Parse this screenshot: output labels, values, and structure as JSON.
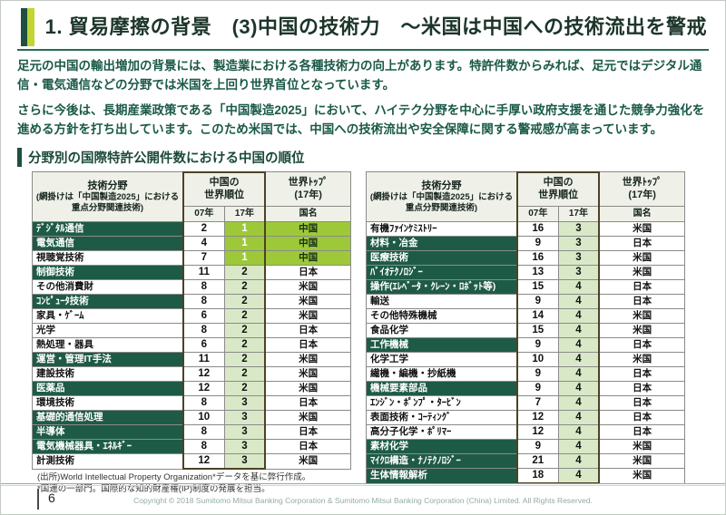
{
  "page": {
    "title": "1. 貿易摩擦の背景　(3)中国の技術力　～米国は中国への技術流出を警戒",
    "page_number": "6",
    "copyright": "Copyright © 2018 Sumitomo Mitsui Banking Corporation & Sumitomo Mitsui Banking Corporation (China) Limited. All Rights Reserved."
  },
  "body": {
    "paragraph1": "足元の中国の輸出増加の背景には、製造業における各種技術力の向上があります。特許件数からみれば、足元ではデジタル通信・電気通信などの分野では米国を上回り世界首位となっています。",
    "paragraph2": "さらに今後は、長期産業政策である「中国製造2025」において、ハイテク分野を中心に手厚い政府支援を通じた競争力強化を進める方針を打ち出しています。このため米国では、中国への技術流出や安全保障に関する警戒感が高まっています。",
    "section_title": "分野別の国際特許公開件数における中国の順位"
  },
  "table_header": {
    "field_title": "技術分野",
    "field_note": "(網掛けは「中国製造2025」における重点分野関連技術)",
    "china_rank_line1": "中国の",
    "china_rank_line2": "世界順位",
    "y07": "07年",
    "y17": "17年",
    "world_top_line1": "世界ﾄｯﾌﾟ",
    "world_top_line2": "(17年)",
    "country": "国名"
  },
  "tables": {
    "left": {
      "rows": [
        {
          "field": "ﾃﾞｼﾞﾀﾙ通信",
          "highlight": true,
          "rank_2007": "2",
          "rank_2017": "1",
          "world_top": "中国"
        },
        {
          "field": "電気通信",
          "highlight": true,
          "rank_2007": "4",
          "rank_2017": "1",
          "world_top": "中国"
        },
        {
          "field": "視聴覚技術",
          "highlight": false,
          "rank_2007": "7",
          "rank_2017": "1",
          "world_top": "中国"
        },
        {
          "field": "制御技術",
          "highlight": true,
          "rank_2007": "11",
          "rank_2017": "2",
          "world_top": "日本"
        },
        {
          "field": "その他消費財",
          "highlight": false,
          "rank_2007": "8",
          "rank_2017": "2",
          "world_top": "米国"
        },
        {
          "field": "ｺﾝﾋﾟｭｰﾀ技術",
          "highlight": true,
          "rank_2007": "8",
          "rank_2017": "2",
          "world_top": "米国"
        },
        {
          "field": "家具・ｹﾞｰﾑ",
          "highlight": false,
          "rank_2007": "6",
          "rank_2017": "2",
          "world_top": "米国"
        },
        {
          "field": "光学",
          "highlight": false,
          "rank_2007": "8",
          "rank_2017": "2",
          "world_top": "日本"
        },
        {
          "field": "熱処理・器具",
          "highlight": false,
          "rank_2007": "6",
          "rank_2017": "2",
          "world_top": "日本"
        },
        {
          "field": "運営・管理IT手法",
          "highlight": true,
          "rank_2007": "11",
          "rank_2017": "2",
          "world_top": "米国"
        },
        {
          "field": "建設技術",
          "highlight": false,
          "rank_2007": "12",
          "rank_2017": "2",
          "world_top": "米国"
        },
        {
          "field": "医薬品",
          "highlight": true,
          "rank_2007": "12",
          "rank_2017": "2",
          "world_top": "米国"
        },
        {
          "field": "環境技術",
          "highlight": false,
          "rank_2007": "8",
          "rank_2017": "3",
          "world_top": "日本"
        },
        {
          "field": "基礎的通信処理",
          "highlight": true,
          "rank_2007": "10",
          "rank_2017": "3",
          "world_top": "米国"
        },
        {
          "field": "半導体",
          "highlight": true,
          "rank_2007": "8",
          "rank_2017": "3",
          "world_top": "日本"
        },
        {
          "field": "電気機械器具・ｴﾈﾙｷﾞｰ",
          "highlight": true,
          "rank_2007": "8",
          "rank_2017": "3",
          "world_top": "日本"
        },
        {
          "field": "計測技術",
          "highlight": false,
          "rank_2007": "12",
          "rank_2017": "3",
          "world_top": "米国"
        }
      ]
    },
    "right": {
      "rows": [
        {
          "field": "有機ﾌｧｲﾝｹﾐｽﾄﾘｰ",
          "highlight": false,
          "rank_2007": "16",
          "rank_2017": "3",
          "world_top": "米国"
        },
        {
          "field": "材料・冶金",
          "highlight": true,
          "rank_2007": "9",
          "rank_2017": "3",
          "world_top": "日本"
        },
        {
          "field": "医療技術",
          "highlight": true,
          "rank_2007": "16",
          "rank_2017": "3",
          "world_top": "米国"
        },
        {
          "field": "ﾊﾞｲｵﾃｸﾉﾛｼﾞｰ",
          "highlight": true,
          "rank_2007": "13",
          "rank_2017": "3",
          "world_top": "米国"
        },
        {
          "field": "操作(ｴﾚﾍﾞｰﾀ・ｸﾚｰﾝ・ﾛﾎﾞｯﾄ等)",
          "highlight": true,
          "rank_2007": "15",
          "rank_2017": "4",
          "world_top": "日本"
        },
        {
          "field": "輸送",
          "highlight": false,
          "rank_2007": "9",
          "rank_2017": "4",
          "world_top": "日本"
        },
        {
          "field": "その他特殊機械",
          "highlight": false,
          "rank_2007": "14",
          "rank_2017": "4",
          "world_top": "米国"
        },
        {
          "field": "食品化学",
          "highlight": false,
          "rank_2007": "15",
          "rank_2017": "4",
          "world_top": "米国"
        },
        {
          "field": "工作機械",
          "highlight": true,
          "rank_2007": "9",
          "rank_2017": "4",
          "world_top": "日本"
        },
        {
          "field": "化学工学",
          "highlight": false,
          "rank_2007": "10",
          "rank_2017": "4",
          "world_top": "米国"
        },
        {
          "field": "繊機・編機・抄紙機",
          "highlight": false,
          "rank_2007": "9",
          "rank_2017": "4",
          "world_top": "日本"
        },
        {
          "field": "機械要素部品",
          "highlight": true,
          "rank_2007": "9",
          "rank_2017": "4",
          "world_top": "日本"
        },
        {
          "field": "ｴﾝｼﾞﾝ・ﾎﾟﾝﾌﾟ・ﾀｰﾋﾞﾝ",
          "highlight": false,
          "rank_2007": "7",
          "rank_2017": "4",
          "world_top": "日本"
        },
        {
          "field": "表面技術・ｺｰﾃｨﾝｸﾞ",
          "highlight": false,
          "rank_2007": "12",
          "rank_2017": "4",
          "world_top": "日本"
        },
        {
          "field": "高分子化学・ﾎﾟﾘﾏｰ",
          "highlight": false,
          "rank_2007": "12",
          "rank_2017": "4",
          "world_top": "日本"
        },
        {
          "field": "素材化学",
          "highlight": true,
          "rank_2007": "9",
          "rank_2017": "4",
          "world_top": "米国"
        },
        {
          "field": "ﾏｲｸﾛ構造・ﾅﾉﾃｸﾉﾛｼﾞｰ",
          "highlight": true,
          "rank_2007": "21",
          "rank_2017": "4",
          "world_top": "米国"
        },
        {
          "field": "生体情報解析",
          "highlight": true,
          "rank_2007": "18",
          "rank_2017": "4",
          "world_top": "米国"
        }
      ]
    }
  },
  "footnote": {
    "line1": "(出所)World Intellectual Property Organization*データを基に弊行作成。",
    "line2": "*国連の一部門。国際的な知的財産権(IP)制度の発展を担当。"
  },
  "colors": {
    "dark_green_highlight": "#1e5b47",
    "bright_green_rank1": "#9dc938",
    "pale_green_rank_col": "#d9e9c7",
    "accent_yellow_green": "#c3d531",
    "accent_dark_green": "#1e5040",
    "rank_box_border": "#4d4226",
    "footer_text": "#95aca0"
  }
}
